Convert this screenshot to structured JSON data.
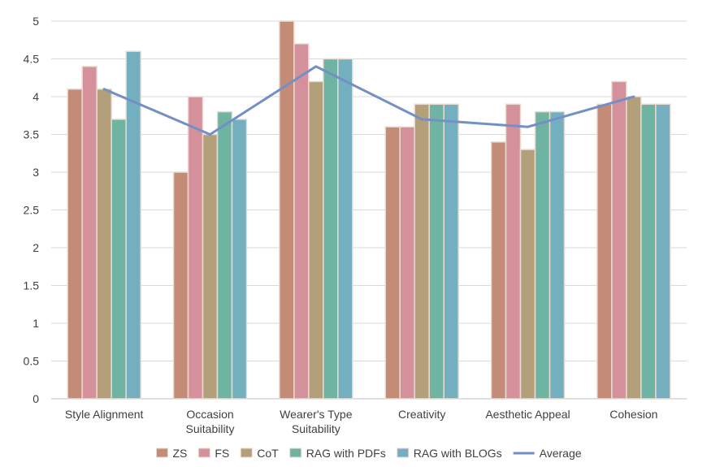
{
  "chart_data": {
    "type": "bar",
    "title": "",
    "xlabel": "",
    "ylabel": "",
    "ylim": [
      0,
      5
    ],
    "yticks": [
      0,
      0.5,
      1,
      1.5,
      2,
      2.5,
      3,
      3.5,
      4,
      4.5,
      5
    ],
    "ytick_labels": [
      "0",
      "0.5",
      "1",
      "1.5",
      "2",
      "2.5",
      "3",
      "3.5",
      "4",
      "4.5",
      "5"
    ],
    "grid": true,
    "legend_position": "bottom",
    "categories": [
      [
        "Style Alignment"
      ],
      [
        "Occasion",
        "Suitability"
      ],
      [
        "Wearer's Type",
        "Suitability"
      ],
      [
        "Creativity"
      ],
      [
        "Aesthetic Appeal"
      ],
      [
        "Cohesion"
      ]
    ],
    "series": [
      {
        "name": "ZS",
        "color": "#c48b77",
        "values": [
          4.1,
          3.0,
          5.0,
          3.6,
          3.4,
          3.9
        ]
      },
      {
        "name": "FS",
        "color": "#d4909b",
        "values": [
          4.4,
          4.0,
          4.7,
          3.6,
          3.9,
          4.2
        ]
      },
      {
        "name": "CoT",
        "color": "#b3a07a",
        "values": [
          4.1,
          3.5,
          4.2,
          3.9,
          3.3,
          4.0
        ]
      },
      {
        "name": "RAG with PDFs",
        "color": "#6fb3a3",
        "values": [
          3.7,
          3.8,
          4.5,
          3.9,
          3.8,
          3.9
        ]
      },
      {
        "name": "RAG with BLOGs",
        "color": "#74afc0",
        "values": [
          4.6,
          3.7,
          4.5,
          3.9,
          3.8,
          3.9
        ]
      }
    ],
    "line": {
      "name": "Average",
      "type": "line",
      "color": "#7390c4",
      "values": [
        4.1,
        3.5,
        4.4,
        3.7,
        3.6,
        4.0
      ]
    }
  }
}
